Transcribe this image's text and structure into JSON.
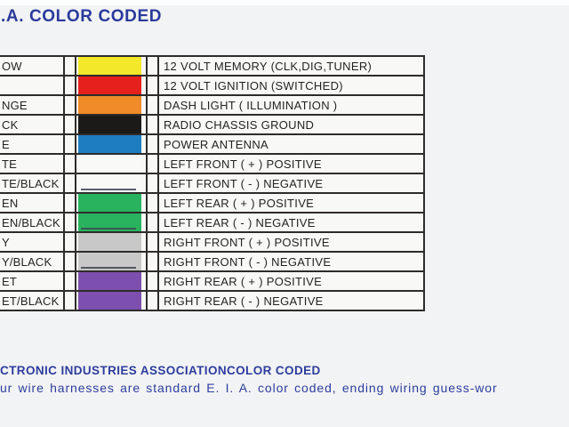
{
  "title": ".A. COLOR CODED",
  "colors": {
    "title_navy": "#2b3a9c",
    "footer_navy": "#2e3d9d",
    "border": "#2e2c2b",
    "background": "#f2f3f4"
  },
  "table": {
    "rows": [
      {
        "label": "OW",
        "swatch": "#f3e829",
        "stripe": false,
        "desc": "12 VOLT MEMORY (CLK,DIG,TUNER)"
      },
      {
        "label": "",
        "swatch": "#e6201d",
        "stripe": false,
        "desc": "12 VOLT IGNITION (SWITCHED)"
      },
      {
        "label": "NGE",
        "swatch": "#ef8b28",
        "stripe": false,
        "desc": "DASH LIGHT ( ILLUMINATION )"
      },
      {
        "label": "CK",
        "swatch": "#1c1919",
        "stripe": false,
        "desc": "RADIO CHASSIS GROUND"
      },
      {
        "label": "E",
        "swatch": "#1e7cc0",
        "stripe": false,
        "desc": "POWER ANTENNA"
      },
      {
        "label": "TE",
        "swatch": "#f9f9f7",
        "stripe": false,
        "desc": "LEFT FRONT ( + ) POSITIVE"
      },
      {
        "label": "TE/BLACK",
        "swatch": "#f9f9f7",
        "stripe": true,
        "desc": "LEFT FRONT ( -  ) NEGATIVE"
      },
      {
        "label": "EN",
        "swatch": "#29b35e",
        "stripe": false,
        "desc": "LEFT REAR ( + ) POSITIVE"
      },
      {
        "label": "EN/BLACK",
        "swatch": "#29b35e",
        "stripe": true,
        "desc": "LEFT REAR ( -  ) NEGATIVE"
      },
      {
        "label": "Y",
        "swatch": "#c8c8c8",
        "stripe": false,
        "desc": "RIGHT FRONT ( + ) POSITIVE"
      },
      {
        "label": "Y/BLACK",
        "swatch": "#c8c8c8",
        "stripe": true,
        "desc": "RIGHT FRONT ( -  ) NEGATIVE"
      },
      {
        "label": "ET",
        "swatch": "#7d4fae",
        "stripe": false,
        "desc": "RIGHT REAR ( + ) POSITIVE"
      },
      {
        "label": "ET/BLACK",
        "swatch": "#7d4fae",
        "stripe": false,
        "desc": "RIGHT REAR ( -  ) NEGATIVE"
      }
    ]
  },
  "footer": {
    "line1": "CTRONIC INDUSTRIES ASSOCIATIONCOLOR CODED",
    "line2": "ur wire harnesses are standard E. I. A. color coded, ending wiring guess-wor"
  }
}
